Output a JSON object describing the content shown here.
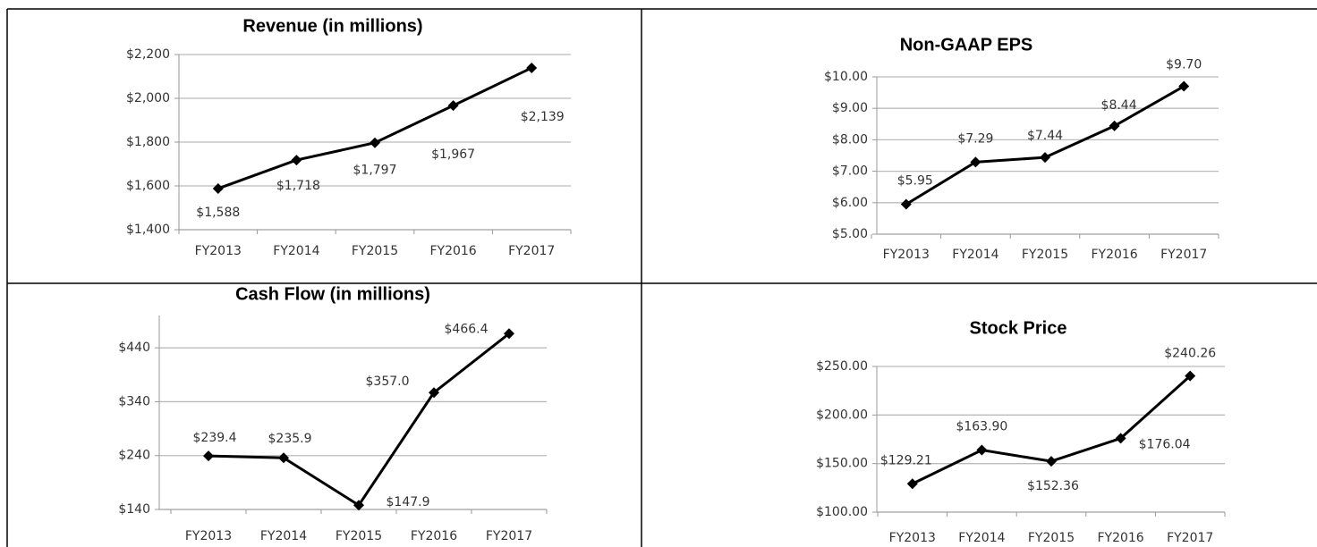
{
  "chart_data": [
    {
      "type": "line",
      "title": "Revenue (in millions)",
      "categories": [
        "FY2013",
        "FY2014",
        "FY2015",
        "FY2016",
        "FY2017"
      ],
      "values": [
        1588,
        1718,
        1797,
        1967,
        2139
      ],
      "value_labels": [
        "$1,588",
        "$1,718",
        "$1,797",
        "$1,967",
        "$2,139"
      ],
      "color": "#000000",
      "ylim": [
        1400,
        2200
      ],
      "yticks": [
        {
          "value": 1400,
          "label": "$1,400"
        },
        {
          "value": 1600,
          "label": "$1,600"
        },
        {
          "value": 1800,
          "label": "$1,800"
        },
        {
          "value": 2000,
          "label": "$2,000"
        },
        {
          "value": 2200,
          "label": "$2,200"
        }
      ],
      "grid": true
    },
    {
      "type": "line",
      "title": "Non-GAAP EPS",
      "categories": [
        "FY2013",
        "FY2014",
        "FY2015",
        "FY2016",
        "FY2017"
      ],
      "values": [
        5.95,
        7.29,
        7.44,
        8.44,
        9.7
      ],
      "value_labels": [
        "$5.95",
        "$7.29",
        "$7.44",
        "$8.44",
        "$9.70"
      ],
      "color": "#000000",
      "ylim": [
        5,
        10
      ],
      "yticks": [
        {
          "value": 5,
          "label": "$5.00"
        },
        {
          "value": 6,
          "label": "$6.00"
        },
        {
          "value": 7,
          "label": "$7.00"
        },
        {
          "value": 8,
          "label": "$8.00"
        },
        {
          "value": 9,
          "label": "$9.00"
        },
        {
          "value": 10,
          "label": "$10.00"
        }
      ],
      "grid": true
    },
    {
      "type": "line",
      "title": "Cash Flow (in millions)",
      "categories": [
        "FY2013",
        "FY2014",
        "FY2015",
        "FY2016",
        "FY2017"
      ],
      "values": [
        239.4,
        235.9,
        147.9,
        357.0,
        466.4
      ],
      "value_labels": [
        "$239.4",
        "$235.9",
        "$147.9",
        "$357.0",
        "$466.4"
      ],
      "color": "#000000",
      "ylim": [
        140,
        500
      ],
      "yticks": [
        {
          "value": 140,
          "label": "$140"
        },
        {
          "value": 240,
          "label": "$240"
        },
        {
          "value": 340,
          "label": "$340"
        },
        {
          "value": 440,
          "label": "$440"
        }
      ],
      "grid": true
    },
    {
      "type": "line",
      "title": "Stock Price",
      "categories": [
        "FY2013",
        "FY2014",
        "FY2015",
        "FY2016",
        "FY2017"
      ],
      "values": [
        129.21,
        163.9,
        152.36,
        176.04,
        240.26
      ],
      "value_labels": [
        "$129.21",
        "$163.90",
        "$152.36",
        "$176.04",
        "$240.26"
      ],
      "color": "#000000",
      "ylim": [
        100,
        250
      ],
      "yticks": [
        {
          "value": 100,
          "label": "$100.00"
        },
        {
          "value": 150,
          "label": "$150.00"
        },
        {
          "value": 200,
          "label": "$200.00"
        },
        {
          "value": 250,
          "label": "$250.00"
        }
      ],
      "grid": true
    }
  ]
}
